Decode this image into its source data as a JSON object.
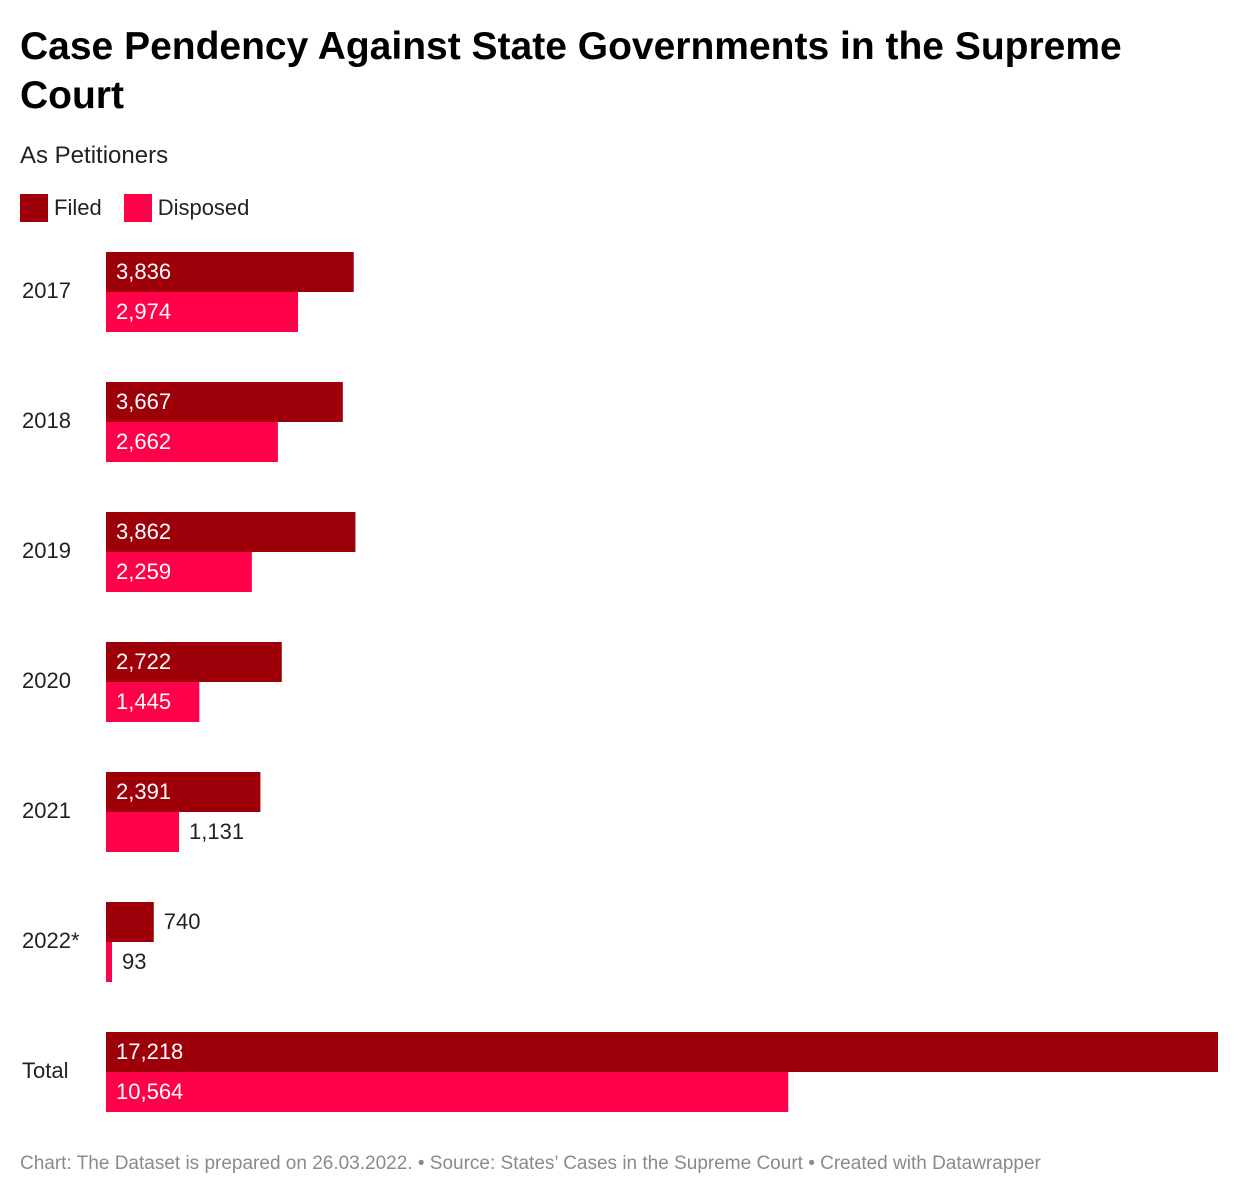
{
  "title": "Case Pendency Against State Governments in the Supreme Court",
  "subtitle": "As Petitioners",
  "footer": "Chart: The Dataset is prepared on 26.03.2022. • Source: States’ Cases in the Supreme Court • Created with Datawrapper",
  "colors": {
    "filed": "#9e000a",
    "disposed": "#ff0049"
  },
  "chart_data": {
    "type": "bar",
    "orientation": "horizontal",
    "categories": [
      "2017",
      "2018",
      "2019",
      "2020",
      "2021",
      "2022*",
      "Total"
    ],
    "series": [
      {
        "name": "Filed",
        "values": [
          3836,
          3667,
          3862,
          2722,
          2391,
          740,
          17218
        ],
        "labels": [
          "3,836",
          "3,667",
          "3,862",
          "2,722",
          "2,391",
          "740",
          "17,218"
        ]
      },
      {
        "name": "Disposed",
        "values": [
          2974,
          2662,
          2259,
          1445,
          1131,
          93,
          10564
        ],
        "labels": [
          "2,974",
          "2,662",
          "2,259",
          "1,445",
          "1,131",
          "93",
          "10,564"
        ]
      }
    ],
    "xlim": [
      0,
      17218
    ],
    "grid": false,
    "legend": "top-left"
  }
}
